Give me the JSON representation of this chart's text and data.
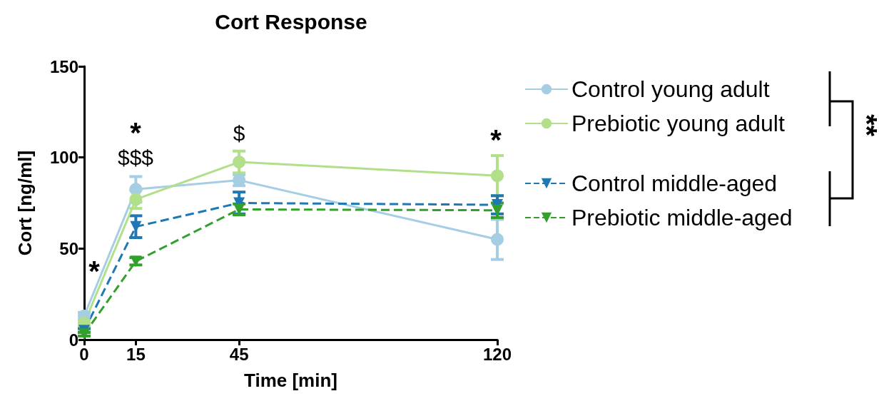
{
  "chart_data": {
    "type": "line",
    "title": "Cort Response",
    "xlabel": "Time [min]",
    "ylabel": "Cort [ng/ml]",
    "x": [
      0,
      15,
      45,
      120
    ],
    "xlim": [
      0,
      120
    ],
    "xticks": [
      0,
      15,
      45,
      120
    ],
    "ylim": [
      0,
      150
    ],
    "yticks": [
      0,
      50,
      100,
      150
    ],
    "grid": false,
    "legend": "right",
    "series": [
      {
        "name": "Control young adult",
        "color": "#a6cee3",
        "values": [
          13,
          82.5,
          87.5,
          55
        ],
        "errors": [
          2,
          7,
          3,
          11
        ],
        "marker": "circle",
        "line_style": "solid"
      },
      {
        "name": "Prebiotic young adult",
        "color": "#b2df8a",
        "values": [
          9,
          77,
          97.5,
          90
        ],
        "errors": [
          2,
          5,
          6,
          11
        ],
        "marker": "circle",
        "line_style": "solid"
      },
      {
        "name": "Control middle-aged",
        "color": "#1f78b4",
        "values": [
          5,
          62,
          75,
          74
        ],
        "errors": [
          1,
          6,
          6,
          5
        ],
        "marker": "triangle",
        "line_style": "dashed"
      },
      {
        "name": "Prebiotic middle-aged",
        "color": "#33a02c",
        "values": [
          3,
          43,
          71.5,
          71
        ],
        "errors": [
          1,
          2,
          3,
          4
        ],
        "marker": "triangle",
        "line_style": "dashed"
      }
    ],
    "annotations": [
      "*",
      "*",
      "$$$",
      "$",
      "*",
      "**"
    ]
  }
}
